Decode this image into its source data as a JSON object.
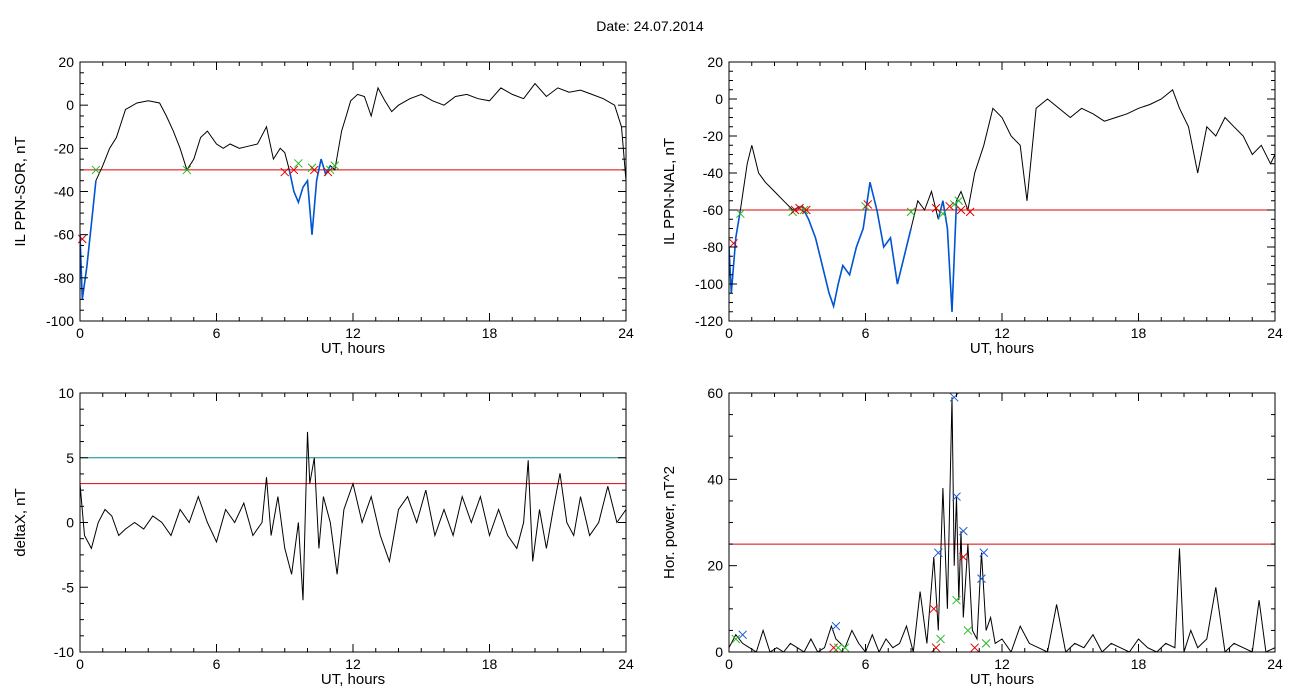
{
  "figure": {
    "title": "Date:  24.07.2014"
  },
  "colors": {
    "data_line": "#000000",
    "highlight_line": "#0055d4",
    "threshold_red": "#e00000",
    "threshold_cyan": "#008b8b",
    "marker_red": "#e00000",
    "marker_green": "#22bb22",
    "marker_blue": "#1f5fd6"
  },
  "chart_data": [
    {
      "type": "line",
      "xlabel": "UT, hours",
      "ylabel": "IL PPN-SOR, nT",
      "xlim": [
        0,
        24
      ],
      "ylim": [
        -100,
        20
      ],
      "xticks": [
        0,
        6,
        12,
        18,
        24
      ],
      "yticks": [
        -100,
        -80,
        -60,
        -40,
        -20,
        0,
        20
      ],
      "thresholds": [
        {
          "y": -30,
          "color": "red"
        }
      ],
      "series": [
        {
          "role": "main",
          "x": [
            0,
            0.1,
            0.3,
            0.5,
            0.7,
            1.0,
            1.3,
            1.6,
            2.0,
            2.5,
            3.0,
            3.5,
            3.8,
            4.1,
            4.4,
            4.7,
            5.0,
            5.3,
            5.6,
            6.0,
            6.3,
            6.6,
            7.0,
            7.4,
            7.8,
            8.2,
            8.5,
            8.8,
            9.0,
            9.2,
            9.4,
            9.6,
            9.8,
            10.0,
            10.2,
            10.4,
            10.6,
            10.8,
            11.0,
            11.2,
            11.5,
            11.7,
            11.9,
            12.2,
            12.5,
            12.8,
            13.1,
            13.4,
            13.7,
            14.0,
            14.5,
            15.0,
            15.5,
            16.0,
            16.5,
            17.0,
            17.5,
            18.0,
            18.5,
            19.0,
            19.5,
            20.0,
            20.5,
            21.0,
            21.5,
            22.0,
            22.5,
            23.0,
            23.5,
            23.8,
            24.0
          ],
          "y": [
            -60,
            -90,
            -75,
            -55,
            -35,
            -28,
            -20,
            -15,
            -2,
            1,
            2,
            1,
            -5,
            -12,
            -20,
            -30,
            -25,
            -15,
            -12,
            -18,
            -20,
            -18,
            -20,
            -19,
            -18,
            -10,
            -25,
            -20,
            -22,
            -30,
            -40,
            -45,
            -38,
            -35,
            -60,
            -35,
            -25,
            -32,
            -28,
            -30,
            -12,
            -5,
            2,
            5,
            4,
            -5,
            8,
            2,
            -3,
            0,
            3,
            5,
            2,
            0,
            4,
            5,
            3,
            2,
            8,
            5,
            3,
            10,
            4,
            8,
            6,
            7,
            5,
            3,
            0,
            -10,
            -35
          ]
        },
        {
          "role": "highlight",
          "segments": [
            {
              "x": [
                0,
                0.1,
                0.3,
                0.5,
                0.7
              ],
              "y": [
                -60,
                -90,
                -75,
                -55,
                -35
              ]
            },
            {
              "x": [
                9.2,
                9.4,
                9.6,
                9.8,
                10.0,
                10.2,
                10.4,
                10.6,
                10.8,
                11.0
              ],
              "y": [
                -30,
                -40,
                -45,
                -38,
                -35,
                -60,
                -35,
                -25,
                -32,
                -28
              ]
            }
          ]
        }
      ],
      "markers": [
        {
          "color": "green",
          "points": [
            [
              0.7,
              -30
            ],
            [
              4.7,
              -30
            ],
            [
              9.6,
              -27
            ],
            [
              10.2,
              -29
            ],
            [
              11.0,
              -30
            ],
            [
              11.2,
              -28
            ]
          ]
        },
        {
          "color": "red",
          "points": [
            [
              0.1,
              -62
            ],
            [
              9.0,
              -31
            ],
            [
              9.4,
              -30
            ],
            [
              10.3,
              -30
            ],
            [
              10.9,
              -31
            ]
          ]
        }
      ]
    },
    {
      "type": "line",
      "xlabel": "UT, hours",
      "ylabel": "IL PPN-NAL, nT",
      "xlim": [
        0,
        24
      ],
      "ylim": [
        -120,
        20
      ],
      "xticks": [
        0,
        6,
        12,
        18,
        24
      ],
      "yticks": [
        -120,
        -100,
        -80,
        -60,
        -40,
        -20,
        0,
        20
      ],
      "thresholds": [
        {
          "y": -60,
          "color": "red"
        }
      ],
      "series": [
        {
          "role": "main",
          "x": [
            0,
            0.1,
            0.3,
            0.5,
            0.8,
            1.0,
            1.3,
            1.6,
            2.0,
            2.4,
            2.8,
            3.2,
            3.5,
            3.8,
            4.1,
            4.4,
            4.6,
            4.8,
            5.0,
            5.3,
            5.6,
            5.9,
            6.2,
            6.5,
            6.8,
            7.1,
            7.4,
            7.7,
            8.0,
            8.3,
            8.6,
            8.9,
            9.2,
            9.4,
            9.6,
            9.8,
            10.0,
            10.2,
            10.5,
            10.8,
            11.2,
            11.6,
            12.0,
            12.4,
            12.8,
            13.1,
            13.5,
            14.0,
            14.5,
            15.0,
            15.5,
            16.0,
            16.5,
            17.0,
            17.5,
            18.0,
            18.5,
            19.0,
            19.5,
            19.8,
            20.2,
            20.6,
            21.0,
            21.4,
            21.8,
            22.2,
            22.6,
            23.0,
            23.4,
            23.8,
            24.0
          ],
          "y": [
            -80,
            -105,
            -75,
            -60,
            -35,
            -25,
            -40,
            -45,
            -50,
            -55,
            -60,
            -58,
            -65,
            -75,
            -90,
            -105,
            -112,
            -100,
            -90,
            -95,
            -80,
            -70,
            -45,
            -60,
            -80,
            -75,
            -100,
            -85,
            -70,
            -55,
            -60,
            -50,
            -65,
            -55,
            -70,
            -115,
            -55,
            -50,
            -60,
            -40,
            -25,
            -5,
            -10,
            -20,
            -25,
            -55,
            -5,
            0,
            -5,
            -10,
            -5,
            -8,
            -12,
            -10,
            -8,
            -5,
            -3,
            0,
            5,
            -5,
            -15,
            -40,
            -15,
            -20,
            -10,
            -15,
            -20,
            -30,
            -25,
            -35,
            -30
          ]
        },
        {
          "role": "highlight",
          "segments": [
            {
              "x": [
                0,
                0.1,
                0.3,
                0.5
              ],
              "y": [
                -80,
                -105,
                -75,
                -60
              ]
            },
            {
              "x": [
                2.8,
                3.2,
                3.5,
                3.8,
                4.1,
                4.4,
                4.6,
                4.8,
                5.0,
                5.3,
                5.6,
                5.9,
                6.2,
                6.5,
                6.8,
                7.1,
                7.4,
                7.7,
                8.0
              ],
              "y": [
                -60,
                -58,
                -65,
                -75,
                -90,
                -105,
                -112,
                -100,
                -90,
                -95,
                -80,
                -70,
                -45,
                -60,
                -80,
                -75,
                -100,
                -85,
                -70
              ]
            },
            {
              "x": [
                9.2,
                9.4,
                9.6,
                9.8,
                10.0
              ],
              "y": [
                -65,
                -55,
                -70,
                -115,
                -55
              ]
            }
          ]
        }
      ],
      "markers": [
        {
          "color": "green",
          "points": [
            [
              0.5,
              -62
            ],
            [
              2.8,
              -61
            ],
            [
              3.3,
              -60
            ],
            [
              6.0,
              -58
            ],
            [
              8.0,
              -61
            ],
            [
              9.4,
              -62
            ],
            [
              9.9,
              -57
            ],
            [
              10.1,
              -55
            ]
          ]
        },
        {
          "color": "red",
          "points": [
            [
              0.2,
              -78
            ],
            [
              2.9,
              -60
            ],
            [
              3.1,
              -59
            ],
            [
              3.4,
              -60
            ],
            [
              6.1,
              -57
            ],
            [
              9.1,
              -59
            ],
            [
              9.7,
              -58
            ],
            [
              10.2,
              -60
            ],
            [
              10.6,
              -61
            ]
          ]
        }
      ]
    },
    {
      "type": "line",
      "xlabel": "UT, hours",
      "ylabel": "deltaX, nT",
      "xlim": [
        0,
        24
      ],
      "ylim": [
        -10,
        10
      ],
      "xticks": [
        0,
        6,
        12,
        18,
        24
      ],
      "yticks": [
        -10,
        -5,
        0,
        5,
        10
      ],
      "thresholds": [
        {
          "y": 5,
          "color": "cyan"
        },
        {
          "y": 3,
          "color": "red"
        }
      ],
      "series": [
        {
          "role": "main",
          "x": [
            0,
            0.2,
            0.5,
            0.8,
            1.1,
            1.4,
            1.7,
            2.0,
            2.4,
            2.8,
            3.2,
            3.6,
            4.0,
            4.4,
            4.8,
            5.2,
            5.6,
            6.0,
            6.4,
            6.8,
            7.2,
            7.6,
            8.0,
            8.2,
            8.4,
            8.7,
            9.0,
            9.3,
            9.6,
            9.8,
            10.0,
            10.1,
            10.3,
            10.5,
            10.7,
            11.0,
            11.3,
            11.6,
            12.0,
            12.4,
            12.8,
            13.2,
            13.6,
            14.0,
            14.4,
            14.8,
            15.2,
            15.6,
            16.0,
            16.4,
            16.8,
            17.2,
            17.6,
            18.0,
            18.4,
            18.8,
            19.2,
            19.5,
            19.7,
            19.9,
            20.2,
            20.5,
            20.8,
            21.1,
            21.4,
            21.7,
            22.0,
            22.4,
            22.8,
            23.2,
            23.6,
            24.0
          ],
          "y": [
            3,
            -1,
            -2,
            0,
            1,
            0.5,
            -1,
            -0.5,
            0,
            -0.5,
            0.5,
            0,
            -1,
            1,
            0,
            2,
            0,
            -1.5,
            1,
            0,
            1.5,
            -1,
            0,
            3.5,
            -1,
            2,
            -2,
            -4,
            0,
            -6,
            7,
            3,
            5,
            -2,
            2,
            0,
            -4,
            1,
            3,
            0,
            2,
            -1,
            -3,
            1,
            2,
            0,
            2.5,
            -1,
            1,
            -1,
            2,
            0,
            2,
            -1,
            1,
            -1,
            -2,
            0,
            4.8,
            -3,
            1,
            -2,
            1,
            3.8,
            0,
            -1,
            2,
            -1,
            0,
            2.8,
            0,
            1
          ]
        }
      ],
      "markers": []
    },
    {
      "type": "line",
      "xlabel": "UT, hours",
      "ylabel": "Hor. power, nT^2",
      "xlim": [
        0,
        24
      ],
      "ylim": [
        0,
        60
      ],
      "xticks": [
        0,
        6,
        12,
        18,
        24
      ],
      "yticks": [
        0,
        20,
        40,
        60
      ],
      "thresholds": [
        {
          "y": 25,
          "color": "red"
        }
      ],
      "series": [
        {
          "role": "main",
          "x": [
            0,
            0.3,
            0.6,
            0.9,
            1.2,
            1.5,
            1.8,
            2.1,
            2.4,
            2.7,
            3.0,
            3.3,
            3.6,
            3.9,
            4.2,
            4.5,
            4.7,
            4.9,
            5.1,
            5.4,
            5.7,
            6.0,
            6.3,
            6.6,
            6.9,
            7.2,
            7.5,
            7.8,
            8.1,
            8.4,
            8.7,
            9.0,
            9.2,
            9.4,
            9.6,
            9.8,
            9.9,
            10.0,
            10.1,
            10.2,
            10.3,
            10.5,
            10.7,
            10.9,
            11.1,
            11.3,
            11.5,
            11.7,
            12.0,
            12.4,
            12.8,
            13.2,
            13.6,
            14.0,
            14.4,
            14.8,
            15.2,
            15.6,
            16.0,
            16.4,
            16.8,
            17.2,
            17.6,
            18.0,
            18.4,
            18.8,
            19.2,
            19.6,
            19.8,
            20.0,
            20.3,
            20.6,
            21.0,
            21.4,
            21.8,
            22.2,
            22.6,
            23.0,
            23.3,
            23.6,
            24.0
          ],
          "y": [
            1,
            4,
            2,
            1,
            0,
            5,
            0,
            1,
            0,
            2,
            1,
            0,
            3,
            0,
            1,
            6,
            3,
            2,
            1,
            5,
            2,
            0,
            4,
            0,
            3,
            1,
            2,
            6,
            0,
            14,
            2,
            22,
            5,
            38,
            10,
            59,
            20,
            36,
            12,
            28,
            8,
            25,
            5,
            3,
            23,
            5,
            8,
            2,
            3,
            0,
            6,
            2,
            1,
            0,
            11,
            0,
            2,
            1,
            4,
            0,
            2,
            1,
            0,
            3,
            1,
            0,
            2,
            1,
            24,
            0,
            5,
            1,
            3,
            15,
            0,
            2,
            1,
            0,
            12,
            0,
            1
          ]
        }
      ],
      "markers": [
        {
          "color": "blue",
          "points": [
            [
              0.6,
              4
            ],
            [
              4.7,
              6
            ],
            [
              9.2,
              23
            ],
            [
              9.9,
              59
            ],
            [
              10.0,
              36
            ],
            [
              10.3,
              28
            ],
            [
              11.2,
              23
            ],
            [
              11.1,
              17
            ]
          ]
        },
        {
          "color": "red",
          "points": [
            [
              4.6,
              1
            ],
            [
              9.0,
              10
            ],
            [
              9.1,
              1
            ],
            [
              10.3,
              22
            ],
            [
              10.8,
              1
            ]
          ]
        },
        {
          "color": "green",
          "points": [
            [
              0.3,
              3
            ],
            [
              4.8,
              1
            ],
            [
              5.1,
              1
            ],
            [
              9.3,
              3
            ],
            [
              10.0,
              12
            ],
            [
              10.5,
              5
            ],
            [
              11.3,
              2
            ]
          ]
        }
      ]
    }
  ]
}
